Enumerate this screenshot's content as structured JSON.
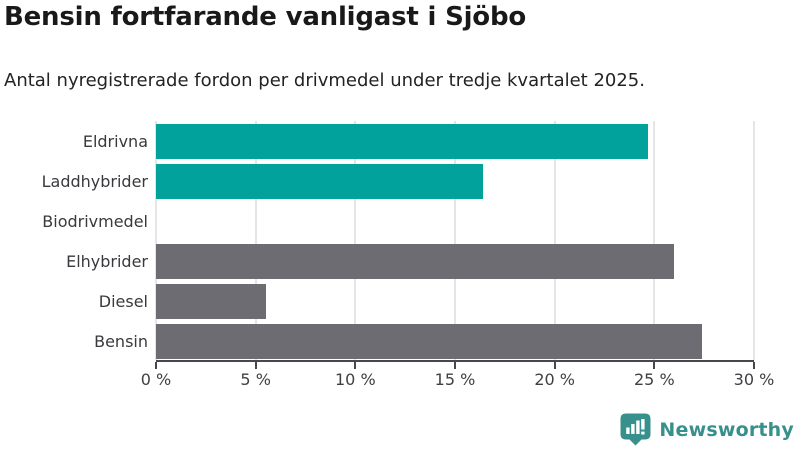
{
  "header": {
    "title": "Bensin fortfarande vanligast i Sjöbo",
    "subtitle": "Antal nyregistrerade fordon per drivmedel under tredje kvartalet 2025."
  },
  "chart_data": {
    "type": "bar",
    "orientation": "horizontal",
    "title": "Bensin fortfarande vanligast i Sjöbo",
    "subtitle": "Antal nyregistrerade fordon per drivmedel under tredje kvartalet 2025.",
    "categories": [
      "Eldrivna",
      "Laddhybrider",
      "Biodrivmedel",
      "Elhybrider",
      "Diesel",
      "Bensin"
    ],
    "values": [
      24.7,
      16.4,
      0,
      26.0,
      5.5,
      27.4
    ],
    "unit": "%",
    "xlim": [
      0,
      30
    ],
    "x_tick_step": 5,
    "x_tick_labels": [
      "0 %",
      "5 %",
      "10 %",
      "15 %",
      "20 %",
      "25 %",
      "30 %"
    ],
    "grid": true,
    "legend": false,
    "bar_colors": [
      "#00a29b",
      "#00a29b",
      "#00a29b",
      "#6c6c72",
      "#6c6c72",
      "#6c6c72"
    ]
  },
  "colors": {
    "accent_teal": "#00a29b",
    "bar_gray": "#6c6c72",
    "gridline": "#e5e5e8",
    "axis": "#47474d",
    "title_text": "#191919",
    "label_text": "#3a3a3e",
    "logo_teal": "#38908c"
  },
  "branding": {
    "logo_text": "Newsworthy",
    "logo_icon": "newsworthy-bar-chart-bubble-icon"
  }
}
